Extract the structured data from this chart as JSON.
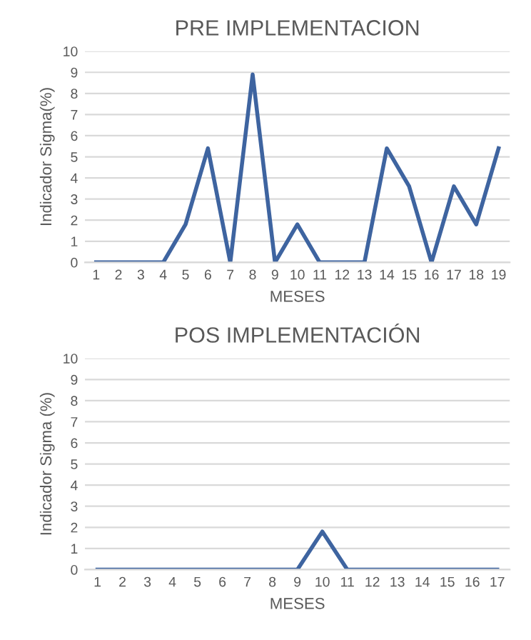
{
  "chart_data": [
    {
      "type": "line",
      "title": "PRE IMPLEMENTACION",
      "xlabel": "MESES",
      "ylabel": "Indicador Sigma(%)",
      "categories": [
        "1",
        "2",
        "3",
        "4",
        "5",
        "6",
        "7",
        "8",
        "9",
        "10",
        "11",
        "12",
        "13",
        "14",
        "15",
        "16",
        "17",
        "18",
        "19"
      ],
      "series": [
        {
          "color": "#3e64a0",
          "values": [
            0,
            0,
            0,
            0,
            1.8,
            5.4,
            0,
            8.9,
            0,
            1.8,
            0,
            0,
            0,
            5.4,
            3.6,
            0,
            3.6,
            1.8,
            5.4
          ]
        }
      ],
      "ylim": [
        0,
        10
      ],
      "yticks": [
        0,
        1,
        2,
        3,
        4,
        5,
        6,
        7,
        8,
        9,
        10
      ],
      "grid": "y",
      "legend": false,
      "marker": "none",
      "line_style": "solid"
    },
    {
      "type": "line",
      "title": "POS IMPLEMENTACIÓN",
      "xlabel": "MESES",
      "ylabel": "Indicador Sigma (%)",
      "categories": [
        "1",
        "2",
        "3",
        "4",
        "5",
        "6",
        "7",
        "8",
        "9",
        "10",
        "11",
        "12",
        "13",
        "14",
        "15",
        "16",
        "17"
      ],
      "series": [
        {
          "color": "#3e64a0",
          "values": [
            0,
            0,
            0,
            0,
            0,
            0,
            0,
            0,
            0,
            1.8,
            0,
            0,
            0,
            0,
            0,
            0,
            0
          ]
        }
      ],
      "ylim": [
        0,
        10
      ],
      "yticks": [
        0,
        1,
        2,
        3,
        4,
        5,
        6,
        7,
        8,
        9,
        10
      ],
      "grid": "y",
      "legend": false,
      "marker": "none",
      "line_style": "solid"
    }
  ]
}
